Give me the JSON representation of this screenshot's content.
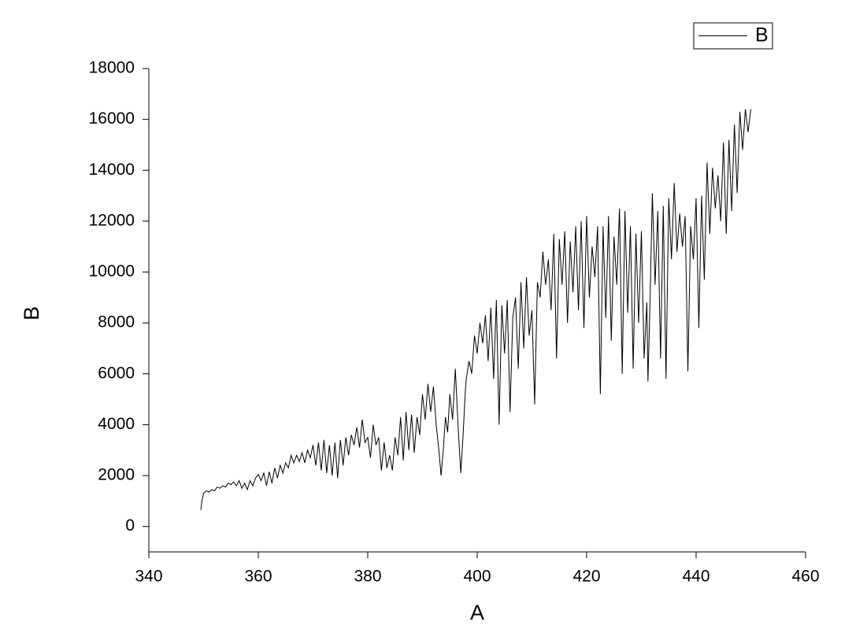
{
  "chart_data": {
    "type": "line",
    "x_label": "A",
    "y_label": "B",
    "xlim": [
      340,
      460
    ],
    "xticks": [
      340,
      360,
      380,
      400,
      420,
      440,
      460
    ],
    "ylim": [
      -1000,
      18000
    ],
    "yticks": [
      0,
      2000,
      4000,
      6000,
      8000,
      10000,
      12000,
      14000,
      16000,
      18000
    ],
    "legend": "top-right",
    "x": [
      349.5,
      349.7,
      350,
      350.5,
      351,
      351.5,
      352,
      352.5,
      353,
      353.5,
      354,
      354.5,
      355,
      355.5,
      356,
      356.5,
      357,
      357.5,
      358,
      358.5,
      359,
      359.5,
      360,
      360.5,
      361,
      361.5,
      362,
      362.5,
      363,
      363.5,
      364,
      364.5,
      365,
      365.5,
      366,
      366.5,
      367,
      367.5,
      368,
      368.5,
      369,
      369.5,
      370,
      370.5,
      371,
      371.5,
      372,
      372.5,
      373,
      373.5,
      374,
      374.5,
      375,
      375.5,
      376,
      376.5,
      377,
      377.5,
      378,
      378.5,
      379,
      379.5,
      380,
      380.5,
      381,
      381.5,
      382,
      382.5,
      383,
      383.5,
      384,
      384.5,
      385,
      385.5,
      386,
      386.5,
      387,
      387.5,
      388,
      388.5,
      389,
      389.5,
      390,
      390.5,
      391,
      391.5,
      392,
      392.5,
      393,
      393.4,
      393.8,
      394.2,
      394.6,
      395,
      395.5,
      396,
      396.5,
      397,
      397.4,
      397.8,
      398,
      398.5,
      399,
      399.5,
      400,
      400.5,
      401,
      401.5,
      402,
      402.5,
      403,
      403.5,
      404,
      404.5,
      405,
      405.5,
      406,
      406.5,
      407,
      407.5,
      408,
      408.5,
      409,
      409.5,
      410,
      410.5,
      411,
      411.5,
      412,
      412.5,
      413,
      413.5,
      414,
      414.5,
      415,
      415.5,
      416,
      416.5,
      417,
      417.5,
      418,
      418.5,
      419,
      419.5,
      420,
      420.5,
      421,
      421.5,
      422,
      422.5,
      423,
      423.5,
      424,
      424.5,
      425,
      425.5,
      426,
      426.5,
      427,
      427.5,
      428,
      428.5,
      429,
      429.5,
      430,
      430.5,
      431,
      431.2,
      431.6,
      432,
      432.5,
      433,
      433.5,
      434,
      434.5,
      435,
      435.5,
      436,
      436.5,
      437,
      437.5,
      438,
      438.5,
      439,
      439.5,
      440,
      440.5,
      441,
      441.5,
      442,
      442.5,
      443,
      443.5,
      444,
      444.5,
      445,
      445.5,
      446,
      446.5,
      447,
      447.5,
      448,
      448.5,
      449,
      449.5,
      450
    ],
    "series": [
      {
        "name": "B",
        "color": "#000000",
        "values": [
          650,
          1000,
          1300,
          1400,
          1350,
          1450,
          1400,
          1550,
          1500,
          1600,
          1550,
          1700,
          1650,
          1750,
          1600,
          1800,
          1500,
          1700,
          1450,
          1800,
          1600,
          1900,
          2050,
          1800,
          2100,
          1600,
          2150,
          1700,
          2300,
          1900,
          2400,
          2100,
          2500,
          2300,
          2800,
          2500,
          2800,
          2550,
          2900,
          2500,
          3000,
          2700,
          3200,
          2400,
          3300,
          2200,
          3400,
          2100,
          3200,
          2000,
          3300,
          1900,
          3400,
          2400,
          3500,
          2800,
          3600,
          3200,
          3900,
          3100,
          4200,
          3300,
          3500,
          2700,
          4000,
          3200,
          3500,
          2200,
          3300,
          2300,
          2800,
          2200,
          3500,
          2800,
          4300,
          2600,
          4500,
          3000,
          4400,
          2900,
          4300,
          3600,
          5200,
          4200,
          5600,
          4500,
          5500,
          4000,
          3000,
          2000,
          3000,
          4300,
          3700,
          5200,
          4200,
          6200,
          4000,
          2100,
          3500,
          5200,
          5800,
          6500,
          6000,
          7500,
          6800,
          8000,
          7200,
          8300,
          6500,
          8600,
          5800,
          8900,
          4000,
          8700,
          6800,
          8900,
          4500,
          8200,
          9000,
          6200,
          9600,
          7000,
          9800,
          7500,
          8500,
          4800,
          9600,
          9000,
          10800,
          9500,
          10500,
          8500,
          11500,
          6600,
          11300,
          9500,
          11600,
          8000,
          11200,
          9200,
          11800,
          8500,
          12000,
          7800,
          12200,
          9000,
          11000,
          9800,
          11800,
          5200,
          11800,
          8200,
          12200,
          7300,
          11400,
          9500,
          12500,
          6000,
          12400,
          8400,
          11800,
          6200,
          11500,
          8000,
          11600,
          6600,
          8800,
          5700,
          9000,
          13100,
          9500,
          12400,
          6600,
          12600,
          5800,
          12900,
          10500,
          13500,
          10800,
          12300,
          11000,
          12200,
          6100,
          11800,
          10500,
          12900,
          7800,
          13000,
          9700,
          14300,
          11500,
          14100,
          12500,
          13800,
          12000,
          15100,
          11500,
          15200,
          12400,
          15800,
          13100,
          16300,
          14800,
          16400,
          15500,
          16400
        ]
      }
    ]
  }
}
